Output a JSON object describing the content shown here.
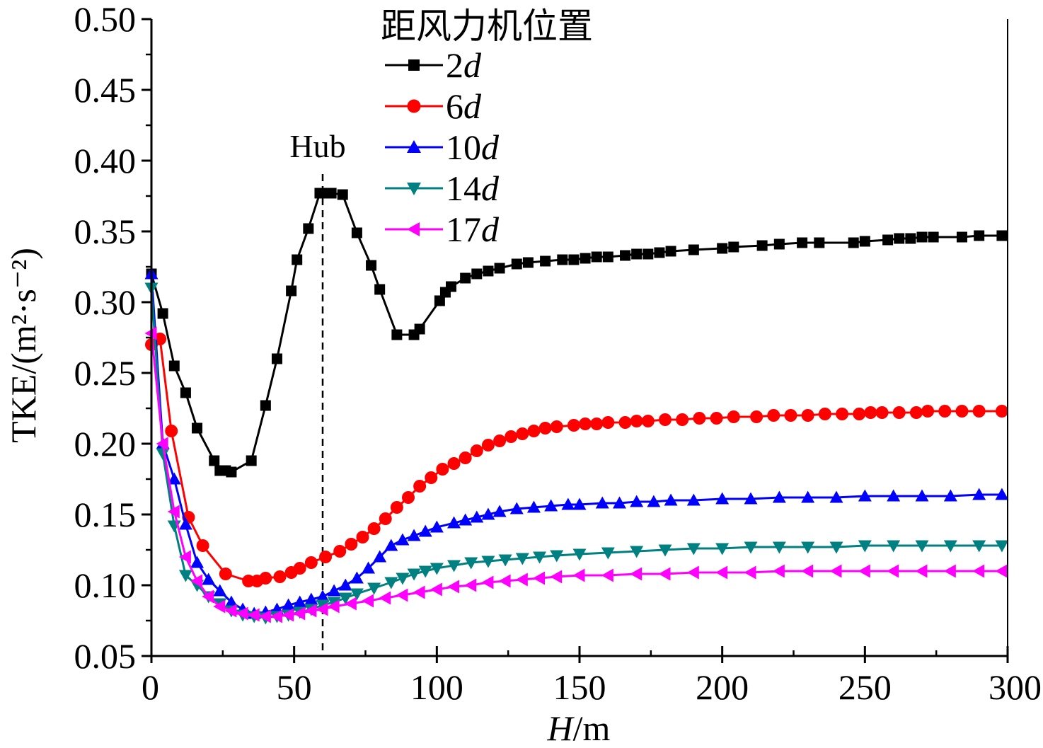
{
  "chart_data": {
    "type": "line",
    "title": "",
    "xlabel_italic": "H",
    "xlabel_rest": "/m",
    "ylabel": "TKE/(m²·s⁻²)",
    "xlim": [
      0,
      300
    ],
    "ylim": [
      0.05,
      0.5
    ],
    "xticks": [
      0,
      50,
      100,
      150,
      200,
      250,
      300
    ],
    "xtick_labels": [
      "0",
      "50",
      "100",
      "150",
      "200",
      "250",
      "300"
    ],
    "yticks": [
      0.05,
      0.1,
      0.15,
      0.2,
      0.25,
      0.3,
      0.35,
      0.4,
      0.45,
      0.5
    ],
    "ytick_labels": [
      "0.05",
      "0.10",
      "0.15",
      "0.20",
      "0.25",
      "0.30",
      "0.35",
      "0.40",
      "0.45",
      "0.50"
    ],
    "grid": false,
    "legend_title": "距风力机位置",
    "legend_position": "top-center",
    "annotation": {
      "text": "Hub",
      "x": 60
    },
    "series": [
      {
        "name_num": "2",
        "name_italic": "d",
        "color": "#000000",
        "marker": "square",
        "x": [
          0,
          4,
          8,
          12,
          16,
          22,
          24,
          26,
          28,
          35,
          40,
          44,
          49,
          51,
          55,
          59,
          61,
          63,
          67,
          72,
          77,
          80,
          86,
          92,
          94,
          101,
          103,
          105,
          110,
          114,
          118,
          122,
          128,
          132,
          138,
          144,
          148,
          152,
          156,
          160,
          166,
          170,
          174,
          178,
          182,
          190,
          200,
          204,
          214,
          220,
          228,
          234,
          246,
          250,
          258,
          262,
          266,
          270,
          274,
          284,
          290,
          298
        ],
        "y": [
          0.32,
          0.292,
          0.255,
          0.236,
          0.211,
          0.188,
          0.181,
          0.181,
          0.18,
          0.188,
          0.227,
          0.26,
          0.308,
          0.33,
          0.352,
          0.377,
          0.377,
          0.377,
          0.376,
          0.349,
          0.326,
          0.309,
          0.277,
          0.277,
          0.281,
          0.301,
          0.307,
          0.311,
          0.317,
          0.32,
          0.322,
          0.324,
          0.327,
          0.328,
          0.329,
          0.33,
          0.33,
          0.331,
          0.332,
          0.332,
          0.333,
          0.334,
          0.334,
          0.335,
          0.336,
          0.337,
          0.338,
          0.339,
          0.34,
          0.341,
          0.342,
          0.342,
          0.342,
          0.343,
          0.344,
          0.345,
          0.345,
          0.346,
          0.346,
          0.346,
          0.347,
          0.347
        ]
      },
      {
        "name_num": "6",
        "name_italic": "d",
        "color": "#ff0000",
        "marker": "circle",
        "x": [
          0,
          3,
          7,
          13,
          18,
          26,
          34,
          37,
          40,
          45,
          49,
          52,
          56,
          61,
          66,
          70,
          74,
          78,
          82,
          86,
          90,
          94,
          98,
          102,
          106,
          110,
          114,
          118,
          122,
          126,
          130,
          134,
          138,
          142,
          148,
          152,
          156,
          160,
          166,
          170,
          174,
          180,
          186,
          192,
          198,
          204,
          212,
          218,
          224,
          230,
          236,
          242,
          248,
          252,
          256,
          262,
          268,
          272,
          278,
          284,
          290,
          298
        ],
        "y": [
          0.27,
          0.274,
          0.209,
          0.148,
          0.128,
          0.108,
          0.103,
          0.103,
          0.105,
          0.106,
          0.109,
          0.112,
          0.116,
          0.12,
          0.124,
          0.129,
          0.134,
          0.14,
          0.147,
          0.155,
          0.162,
          0.17,
          0.176,
          0.182,
          0.186,
          0.19,
          0.195,
          0.199,
          0.202,
          0.205,
          0.207,
          0.209,
          0.211,
          0.212,
          0.213,
          0.214,
          0.214,
          0.215,
          0.215,
          0.216,
          0.216,
          0.217,
          0.217,
          0.218,
          0.218,
          0.219,
          0.219,
          0.22,
          0.22,
          0.22,
          0.221,
          0.221,
          0.221,
          0.222,
          0.222,
          0.222,
          0.222,
          0.223,
          0.223,
          0.223,
          0.223,
          0.223
        ]
      },
      {
        "name_num": "10",
        "name_italic": "d",
        "color": "#0000ff",
        "marker": "triangle-up",
        "x": [
          0,
          4,
          8,
          12,
          16,
          20,
          24,
          28,
          32,
          36,
          40,
          44,
          48,
          52,
          56,
          60,
          64,
          68,
          72,
          76,
          80,
          84,
          88,
          92,
          96,
          100,
          106,
          110,
          114,
          118,
          122,
          128,
          134,
          140,
          146,
          150,
          158,
          164,
          170,
          176,
          182,
          190,
          200,
          210,
          220,
          230,
          240,
          250,
          260,
          270,
          280,
          290,
          298
        ],
        "y": [
          0.32,
          0.2,
          0.175,
          0.143,
          0.116,
          0.104,
          0.096,
          0.088,
          0.083,
          0.08,
          0.081,
          0.083,
          0.086,
          0.088,
          0.09,
          0.092,
          0.096,
          0.1,
          0.105,
          0.112,
          0.12,
          0.128,
          0.132,
          0.135,
          0.138,
          0.141,
          0.144,
          0.146,
          0.148,
          0.15,
          0.152,
          0.154,
          0.155,
          0.156,
          0.157,
          0.157,
          0.158,
          0.158,
          0.159,
          0.159,
          0.16,
          0.16,
          0.161,
          0.161,
          0.162,
          0.162,
          0.162,
          0.163,
          0.163,
          0.163,
          0.163,
          0.164,
          0.164
        ]
      },
      {
        "name_num": "14",
        "name_italic": "d",
        "color": "#008080",
        "marker": "triangle-down",
        "x": [
          0,
          4,
          8,
          12,
          16,
          20,
          24,
          28,
          32,
          36,
          40,
          44,
          48,
          52,
          56,
          60,
          64,
          68,
          72,
          78,
          84,
          88,
          92,
          96,
          100,
          106,
          112,
          118,
          124,
          130,
          136,
          142,
          150,
          160,
          170,
          180,
          190,
          200,
          210,
          220,
          230,
          240,
          250,
          260,
          270,
          280,
          290,
          298
        ],
        "y": [
          0.31,
          0.193,
          0.142,
          0.107,
          0.1,
          0.092,
          0.087,
          0.082,
          0.079,
          0.078,
          0.077,
          0.078,
          0.079,
          0.081,
          0.083,
          0.086,
          0.088,
          0.091,
          0.094,
          0.098,
          0.102,
          0.105,
          0.108,
          0.11,
          0.112,
          0.114,
          0.116,
          0.117,
          0.118,
          0.119,
          0.12,
          0.121,
          0.122,
          0.123,
          0.124,
          0.125,
          0.126,
          0.126,
          0.127,
          0.127,
          0.127,
          0.127,
          0.128,
          0.128,
          0.128,
          0.128,
          0.128,
          0.128
        ]
      },
      {
        "name_num": "17",
        "name_italic": "d",
        "color": "#ff00ff",
        "marker": "triangle-left",
        "x": [
          0,
          4,
          8,
          12,
          16,
          20,
          24,
          28,
          32,
          36,
          40,
          44,
          48,
          52,
          56,
          60,
          64,
          70,
          76,
          82,
          88,
          94,
          100,
          106,
          112,
          118,
          124,
          130,
          136,
          142,
          150,
          160,
          170,
          180,
          190,
          200,
          210,
          220,
          230,
          240,
          250,
          260,
          270,
          280,
          290,
          298
        ],
        "y": [
          0.278,
          0.2,
          0.152,
          0.12,
          0.103,
          0.092,
          0.085,
          0.082,
          0.08,
          0.079,
          0.078,
          0.078,
          0.079,
          0.08,
          0.082,
          0.083,
          0.085,
          0.087,
          0.089,
          0.091,
          0.093,
          0.095,
          0.097,
          0.099,
          0.1,
          0.102,
          0.103,
          0.104,
          0.105,
          0.106,
          0.107,
          0.107,
          0.108,
          0.108,
          0.109,
          0.109,
          0.109,
          0.11,
          0.11,
          0.11,
          0.11,
          0.11,
          0.11,
          0.11,
          0.11,
          0.11
        ]
      }
    ]
  }
}
